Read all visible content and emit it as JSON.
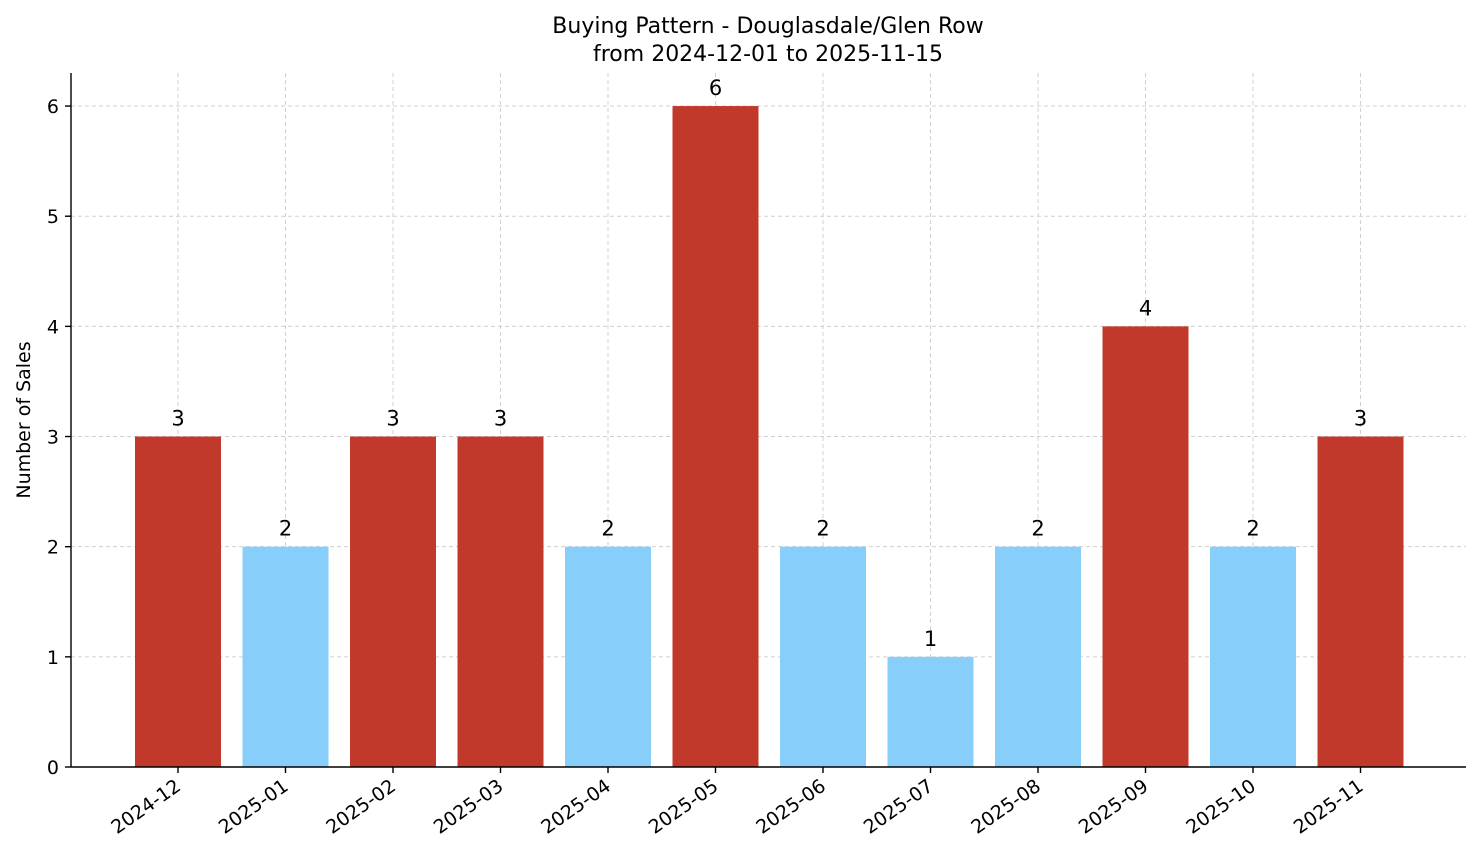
{
  "chart_data": {
    "type": "bar",
    "title": "Buying Pattern - Douglasdale/Glen Row",
    "subtitle": "from 2024-12-01 to 2025-11-15",
    "xlabel": "",
    "ylabel": "Number of Sales",
    "categories": [
      "2024-12",
      "2025-01",
      "2025-02",
      "2025-03",
      "2025-04",
      "2025-05",
      "2025-06",
      "2025-07",
      "2025-08",
      "2025-09",
      "2025-10",
      "2025-11"
    ],
    "values": [
      3,
      2,
      3,
      3,
      2,
      6,
      2,
      1,
      2,
      4,
      2,
      3
    ],
    "yticks": [
      0,
      1,
      2,
      3,
      4,
      5,
      6
    ],
    "ylim": [
      0,
      6.3
    ],
    "grid": true,
    "colors": {
      "high": "#c0392b",
      "low": "#87cefa"
    }
  }
}
